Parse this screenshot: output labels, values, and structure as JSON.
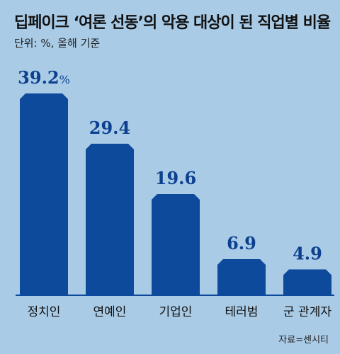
{
  "title": "딥페이크 ‘여론 선동’의 악용 대상이 된 직업별 비율",
  "subtitle": "단위: %, 올해 기준",
  "source": "자료=센시티",
  "colors": {
    "bar": "#0d4a9c",
    "label": "#0d3f8f",
    "background": "#a9cbe6"
  },
  "chart_data": {
    "type": "bar",
    "categories": [
      "정치인",
      "연예인",
      "기업인",
      "테러범",
      "군 관계자"
    ],
    "values": [
      39.2,
      29.4,
      19.6,
      6.9,
      4.9
    ],
    "value_labels": [
      "39.2",
      "29.4",
      "19.6",
      "6.9",
      "4.9"
    ],
    "first_label_suffix": "%",
    "ylim": [
      0,
      39.2
    ],
    "grid": false
  }
}
